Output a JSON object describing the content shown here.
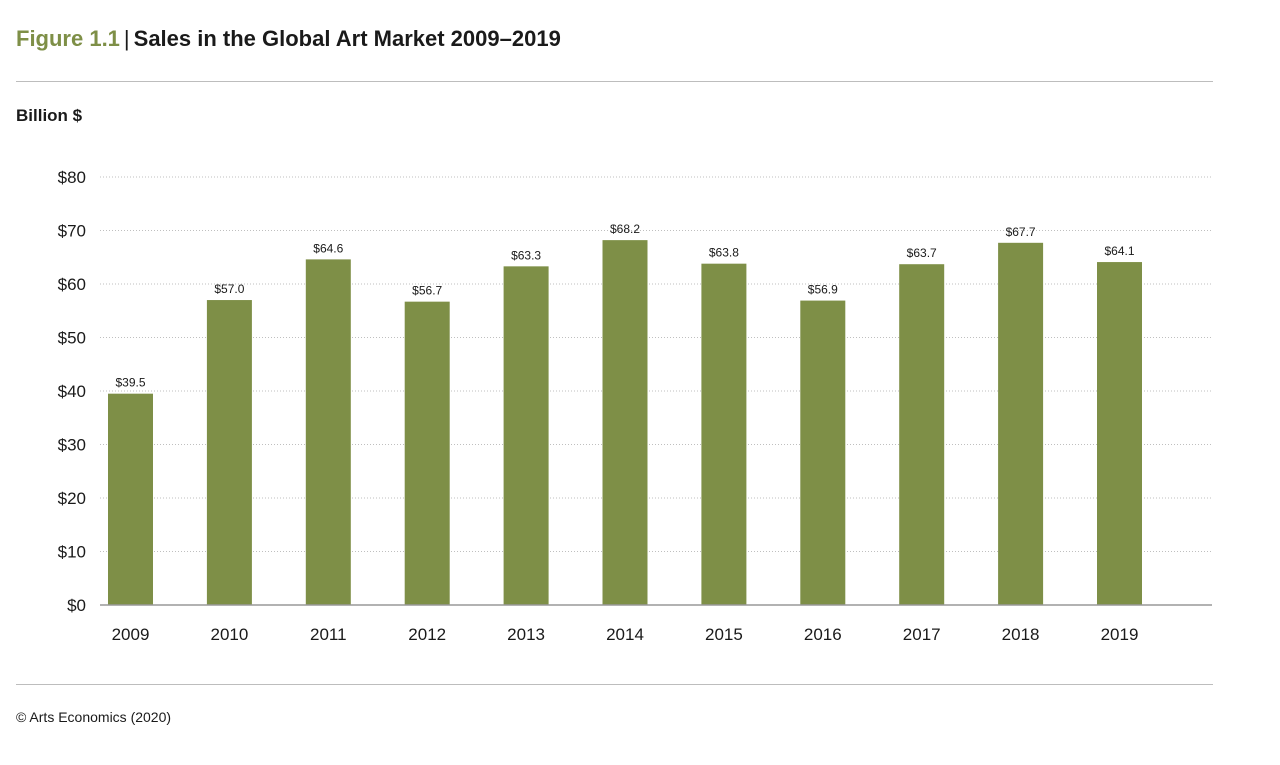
{
  "figure": {
    "number": "Figure 1.1",
    "separator": "|",
    "title": "Sales in the Global Art Market 2009–2019"
  },
  "colors": {
    "bar": "#7e8f47",
    "figure_number": "#7e8f47",
    "grid": "#bfbfbf",
    "axis": "#999999",
    "text": "#1a1a1a"
  },
  "chart_data": {
    "type": "bar",
    "ylabel": "Billion $",
    "xlabel": "",
    "categories": [
      "2009",
      "2010",
      "2011",
      "2012",
      "2013",
      "2014",
      "2015",
      "2016",
      "2017",
      "2018",
      "2019"
    ],
    "values": [
      39.5,
      57.0,
      64.6,
      56.7,
      63.3,
      68.2,
      63.8,
      56.9,
      63.7,
      67.7,
      64.1
    ],
    "data_labels": [
      "$39.5",
      "$57.0",
      "$64.6",
      "$56.7",
      "$63.3",
      "$68.2",
      "$63.8",
      "$56.9",
      "$63.7",
      "$67.7",
      "$64.1"
    ],
    "ylim": [
      0,
      80
    ],
    "y_ticks": [
      0,
      10,
      20,
      30,
      40,
      50,
      60,
      70,
      80
    ],
    "y_tick_labels": [
      "$0",
      "$10",
      "$20",
      "$30",
      "$40",
      "$50",
      "$60",
      "$70",
      "$80"
    ],
    "grid": true,
    "grid_style": "dotted",
    "legend": "none"
  },
  "source": "© Arts Economics (2020)"
}
